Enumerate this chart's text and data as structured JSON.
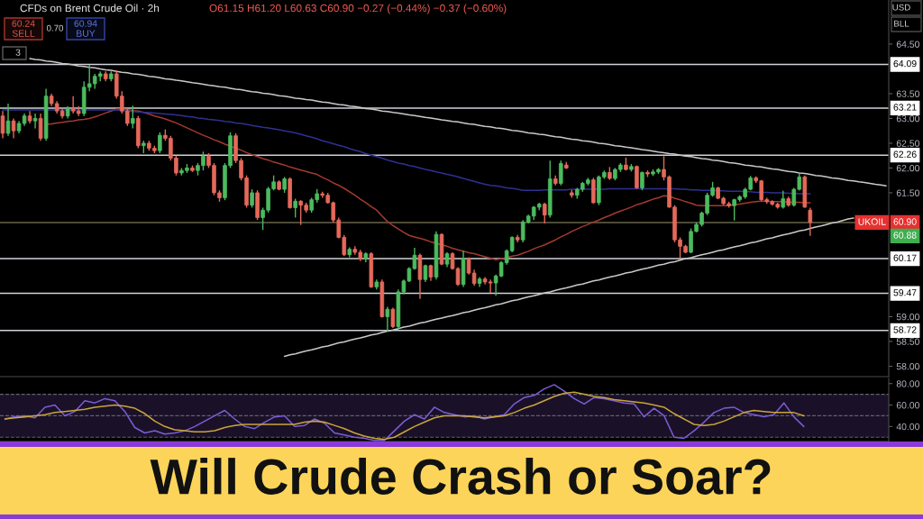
{
  "chart_data": [
    {
      "type": "candlestick",
      "title": "Will Crude Crash or Soar?",
      "subtitle": "CFDs on Brent Crude Oil · 2h",
      "categories": [
        null,
        null,
        null,
        null,
        null,
        null,
        null,
        null,
        null,
        null,
        null,
        null,
        null,
        null,
        null,
        null,
        null,
        null,
        null,
        null,
        null,
        null,
        null,
        null,
        null,
        null,
        null,
        null,
        null,
        null,
        null,
        null,
        null,
        null,
        null,
        null,
        null,
        null,
        null,
        null,
        null,
        null,
        null,
        null,
        null,
        null,
        null,
        null,
        null,
        null,
        null,
        null,
        null,
        null,
        null,
        null,
        null,
        null,
        null,
        null,
        null,
        null,
        null,
        null,
        null,
        null,
        null,
        null,
        null,
        null,
        null,
        null,
        null,
        null,
        null,
        null,
        null,
        null,
        null,
        null,
        null,
        null,
        null,
        null,
        null,
        null,
        null,
        null,
        null,
        null,
        null,
        null,
        null,
        null,
        null,
        null,
        null,
        null,
        null,
        null,
        null,
        null,
        null,
        null,
        null,
        null,
        null,
        null,
        null,
        null,
        null,
        null,
        null,
        null,
        null,
        null,
        null,
        null,
        null,
        null,
        null,
        null,
        null,
        null,
        null,
        null,
        null,
        null,
        null,
        null,
        null,
        null,
        null,
        null,
        null,
        null,
        null,
        null,
        null,
        null,
        null,
        null,
        null,
        null,
        null,
        null,
        null,
        null,
        null,
        null,
        null,
        null,
        null,
        null,
        null,
        null,
        null,
        null,
        null,
        null,
        null,
        null,
        null,
        null
      ],
      "ohlc": [
        [
          63.05,
          63.15,
          62.6,
          62.7
        ],
        [
          62.7,
          63.3,
          62.65,
          62.95
        ],
        [
          62.95,
          63.0,
          62.6,
          62.75
        ],
        [
          62.75,
          62.95,
          62.7,
          62.9
        ],
        [
          62.9,
          63.1,
          62.85,
          63.05
        ],
        [
          63.05,
          63.15,
          62.9,
          62.95
        ],
        [
          62.95,
          63.1,
          62.8,
          63.0
        ],
        [
          63.0,
          63.1,
          62.55,
          62.6
        ],
        [
          62.6,
          63.6,
          62.55,
          63.45
        ],
        [
          63.45,
          63.5,
          63.25,
          63.3
        ],
        [
          63.3,
          63.35,
          63.1,
          63.15
        ],
        [
          63.15,
          63.2,
          63.0,
          63.05
        ],
        [
          63.05,
          63.25,
          63.0,
          63.2
        ],
        [
          63.2,
          63.45,
          63.1,
          63.15
        ],
        [
          63.15,
          63.25,
          63.05,
          63.1
        ],
        [
          63.1,
          63.75,
          63.05,
          63.63
        ],
        [
          63.63,
          64.08,
          63.55,
          63.7
        ],
        [
          63.7,
          63.9,
          63.6,
          63.85
        ],
        [
          63.85,
          63.95,
          63.75,
          63.9
        ],
        [
          63.9,
          63.95,
          63.75,
          63.8
        ],
        [
          63.8,
          63.95,
          63.75,
          63.9
        ],
        [
          63.9,
          63.97,
          63.4,
          63.45
        ],
        [
          63.45,
          63.55,
          63.1,
          63.15
        ],
        [
          63.15,
          63.2,
          62.85,
          62.9
        ],
        [
          62.9,
          63.26,
          62.8,
          63.0
        ],
        [
          63.0,
          63.05,
          62.4,
          62.45
        ],
        [
          62.45,
          62.55,
          62.3,
          62.5
        ],
        [
          62.5,
          62.55,
          62.35,
          62.4
        ],
        [
          62.4,
          62.45,
          62.3,
          62.35
        ],
        [
          62.35,
          62.72,
          62.3,
          62.66
        ],
        [
          62.66,
          62.78,
          62.55,
          62.6
        ],
        [
          62.6,
          62.65,
          62.15,
          62.2
        ],
        [
          62.2,
          62.25,
          61.85,
          61.9
        ],
        [
          61.9,
          62.0,
          61.85,
          61.95
        ],
        [
          61.95,
          62.08,
          61.9,
          62.0
        ],
        [
          62.0,
          62.05,
          61.92,
          61.95
        ],
        [
          61.95,
          62.1,
          61.85,
          62.05
        ],
        [
          62.05,
          62.33,
          61.95,
          62.24
        ],
        [
          62.24,
          62.3,
          62.0,
          62.05
        ],
        [
          62.05,
          62.1,
          61.45,
          61.5
        ],
        [
          61.5,
          61.55,
          61.32,
          61.4
        ],
        [
          61.4,
          62.1,
          61.35,
          62.05
        ],
        [
          62.05,
          62.72,
          62.0,
          62.65
        ],
        [
          62.65,
          62.7,
          62.1,
          62.15
        ],
        [
          62.15,
          62.2,
          61.75,
          61.8
        ],
        [
          61.8,
          61.85,
          61.2,
          61.25
        ],
        [
          61.25,
          61.57,
          61.2,
          61.5
        ],
        [
          61.5,
          61.55,
          60.95,
          61.0
        ],
        [
          61.0,
          61.2,
          60.75,
          61.15
        ],
        [
          61.15,
          61.62,
          61.1,
          61.58
        ],
        [
          61.58,
          61.85,
          61.55,
          61.72
        ],
        [
          61.72,
          61.75,
          61.55,
          61.57
        ],
        [
          61.57,
          61.82,
          61.5,
          61.78
        ],
        [
          61.78,
          61.81,
          61.18,
          61.2
        ],
        [
          61.2,
          61.38,
          61.0,
          61.33
        ],
        [
          61.33,
          61.35,
          60.85,
          61.25
        ],
        [
          61.25,
          61.3,
          61.1,
          61.15
        ],
        [
          61.15,
          61.4,
          61.1,
          61.36
        ],
        [
          61.36,
          61.57,
          61.3,
          61.48
        ],
        [
          61.48,
          61.52,
          61.4,
          61.45
        ],
        [
          61.45,
          61.5,
          61.28,
          61.3
        ],
        [
          61.3,
          61.32,
          60.9,
          60.95
        ],
        [
          60.95,
          61.0,
          60.58,
          60.6
        ],
        [
          60.6,
          60.65,
          60.22,
          60.25
        ],
        [
          60.25,
          60.4,
          60.2,
          60.36
        ],
        [
          60.36,
          60.42,
          60.25,
          60.3
        ],
        [
          60.3,
          60.35,
          60.12,
          60.17
        ],
        [
          60.17,
          60.3,
          60.1,
          60.27
        ],
        [
          60.27,
          60.3,
          59.58,
          59.6
        ],
        [
          59.6,
          59.75,
          59.55,
          59.7
        ],
        [
          59.7,
          59.75,
          58.98,
          59.0
        ],
        [
          59.0,
          59.2,
          58.7,
          59.15
        ],
        [
          59.15,
          59.18,
          58.77,
          58.8
        ],
        [
          58.8,
          59.55,
          58.75,
          59.5
        ],
        [
          59.5,
          59.75,
          59.45,
          59.72
        ],
        [
          59.72,
          60.0,
          59.7,
          59.97
        ],
        [
          59.97,
          60.39,
          59.95,
          60.24
        ],
        [
          60.24,
          60.27,
          59.36,
          59.75
        ],
        [
          59.75,
          60.05,
          59.7,
          60.03
        ],
        [
          60.03,
          60.05,
          59.72,
          59.8
        ],
        [
          59.8,
          60.72,
          59.75,
          60.66
        ],
        [
          60.66,
          60.68,
          60.04,
          60.06
        ],
        [
          60.06,
          60.3,
          60.0,
          60.27
        ],
        [
          60.27,
          60.3,
          59.95,
          59.97
        ],
        [
          59.97,
          60.0,
          59.62,
          59.65
        ],
        [
          59.65,
          60.33,
          59.6,
          60.18
        ],
        [
          60.18,
          60.2,
          59.85,
          59.88
        ],
        [
          59.88,
          59.95,
          59.62,
          59.67
        ],
        [
          59.67,
          59.8,
          59.6,
          59.76
        ],
        [
          59.76,
          59.8,
          59.65,
          59.7
        ],
        [
          59.7,
          59.75,
          59.48,
          59.68
        ],
        [
          59.68,
          59.85,
          59.42,
          59.82
        ],
        [
          59.82,
          60.12,
          59.8,
          60.09
        ],
        [
          60.09,
          60.36,
          60.05,
          60.33
        ],
        [
          60.33,
          60.62,
          60.3,
          60.6
        ],
        [
          60.6,
          60.65,
          60.5,
          60.55
        ],
        [
          60.55,
          60.95,
          60.5,
          60.91
        ],
        [
          60.91,
          61.06,
          60.88,
          61.03
        ],
        [
          61.03,
          61.23,
          60.95,
          61.21
        ],
        [
          61.21,
          61.3,
          61.15,
          61.27
        ],
        [
          61.27,
          61.3,
          60.88,
          61.05
        ],
        [
          61.05,
          62.15,
          61.0,
          61.78
        ],
        [
          61.78,
          61.85,
          61.65,
          61.69
        ],
        [
          61.69,
          62.15,
          61.65,
          62.09
        ],
        [
          62.06,
          62.12,
          61.98,
          62.0
        ],
        [
          61.5,
          61.56,
          61.4,
          61.45
        ],
        [
          61.45,
          61.6,
          61.38,
          61.57
        ],
        [
          61.57,
          61.72,
          61.52,
          61.69
        ],
        [
          61.69,
          61.8,
          61.65,
          61.76
        ],
        [
          61.76,
          61.8,
          61.28,
          61.3
        ],
        [
          61.3,
          61.85,
          61.25,
          61.82
        ],
        [
          61.82,
          61.95,
          61.78,
          61.91
        ],
        [
          61.91,
          62.02,
          61.76,
          61.79
        ],
        [
          61.79,
          62.0,
          61.75,
          61.97
        ],
        [
          61.97,
          62.1,
          61.92,
          62.06
        ],
        [
          62.06,
          62.21,
          61.95,
          61.97
        ],
        [
          61.97,
          62.08,
          61.93,
          62.03
        ],
        [
          62.03,
          62.05,
          61.58,
          61.6
        ],
        [
          61.6,
          61.93,
          61.55,
          61.91
        ],
        [
          61.91,
          61.95,
          61.82,
          61.88
        ],
        [
          61.88,
          61.97,
          61.84,
          61.92
        ],
        [
          61.92,
          62.0,
          61.88,
          61.97
        ],
        [
          61.97,
          62.24,
          61.75,
          61.82
        ],
        [
          61.82,
          61.85,
          61.2,
          61.21
        ],
        [
          61.21,
          61.25,
          60.5,
          60.55
        ],
        [
          60.55,
          60.6,
          60.18,
          60.42
        ],
        [
          60.42,
          60.45,
          60.28,
          60.3
        ],
        [
          60.3,
          60.78,
          60.28,
          60.72
        ],
        [
          60.72,
          60.9,
          60.7,
          60.86
        ],
        [
          60.86,
          61.12,
          60.82,
          61.09
        ],
        [
          61.09,
          61.5,
          61.05,
          61.45
        ],
        [
          61.45,
          61.72,
          61.42,
          61.6
        ],
        [
          61.6,
          61.62,
          61.37,
          61.39
        ],
        [
          61.39,
          61.42,
          61.25,
          61.28
        ],
        [
          61.28,
          61.32,
          61.2,
          61.24
        ],
        [
          61.24,
          61.38,
          60.94,
          61.36
        ],
        [
          61.36,
          61.45,
          61.32,
          61.42
        ],
        [
          61.42,
          61.6,
          61.38,
          61.57
        ],
        [
          61.57,
          61.84,
          61.55,
          61.8
        ],
        [
          61.8,
          61.83,
          61.7,
          61.74
        ],
        [
          61.74,
          61.76,
          61.33,
          61.36
        ],
        [
          61.36,
          61.4,
          61.28,
          61.32
        ],
        [
          61.32,
          61.35,
          61.24,
          61.27
        ],
        [
          61.27,
          61.3,
          61.18,
          61.21
        ],
        [
          61.21,
          61.54,
          61.18,
          61.38
        ],
        [
          61.38,
          61.42,
          61.22,
          61.25
        ],
        [
          61.25,
          61.6,
          61.22,
          61.57
        ],
        [
          61.57,
          61.88,
          61.55,
          61.82
        ],
        [
          61.82,
          61.85,
          61.2,
          61.21
        ],
        [
          61.15,
          61.2,
          60.63,
          60.9
        ],
        null,
        null,
        null,
        null,
        null,
        null,
        null,
        null,
        null,
        null,
        null,
        null,
        null,
        null
      ],
      "series": [
        {
          "type": "line",
          "color": "#a33a2e",
          "values": [
            null,
            null,
            null,
            null,
            null,
            null,
            null,
            null,
            62.88,
            62.89,
            62.91,
            62.92,
            62.94,
            62.95,
            62.97,
            62.98,
            63.0,
            63.03,
            63.07,
            63.11,
            63.15,
            63.19,
            63.19,
            63.18,
            63.16,
            63.15,
            63.12,
            63.09,
            63.05,
            63.02,
            62.99,
            62.95,
            62.91,
            62.86,
            62.81,
            62.76,
            62.71,
            62.66,
            62.62,
            62.57,
            62.53,
            62.48,
            62.44,
            62.4,
            62.36,
            62.31,
            62.27,
            62.23,
            62.19,
            62.16,
            62.12,
            62.09,
            62.06,
            62.02,
            61.99,
            61.96,
            61.93,
            61.9,
            61.87,
            61.81,
            61.76,
            61.7,
            61.65,
            61.59,
            61.52,
            61.45,
            61.37,
            61.3,
            61.22,
            61.15,
            61.03,
            60.92,
            60.84,
            60.77,
            60.7,
            60.64,
            60.61,
            60.58,
            60.55,
            60.51,
            60.48,
            60.45,
            60.42,
            60.38,
            60.35,
            60.32,
            60.29,
            60.27,
            60.24,
            60.21,
            60.18,
            60.15,
            60.17,
            60.19,
            60.22,
            60.24,
            60.28,
            60.32,
            60.37,
            60.41,
            60.45,
            60.5,
            60.55,
            60.61,
            60.66,
            60.72,
            60.77,
            60.82,
            60.86,
            60.91,
            60.95,
            61.0,
            61.04,
            61.09,
            61.13,
            61.17,
            61.21,
            61.26,
            61.29,
            61.33,
            61.37,
            61.4,
            61.44,
            61.43,
            61.39,
            61.36,
            61.32,
            61.29,
            61.25,
            61.24,
            61.24,
            61.24,
            61.24,
            61.24,
            61.24,
            61.26,
            61.27,
            61.29,
            61.31,
            61.32,
            61.33,
            61.33,
            61.32,
            61.32,
            61.32,
            61.31,
            61.31,
            61.31,
            61.3,
            61.3,
            null,
            null,
            null,
            null,
            null,
            null,
            null,
            null,
            null,
            null,
            null,
            null,
            null,
            null
          ]
        },
        {
          "type": "line",
          "color": "#2d3192",
          "values": [
            63.17,
            63.17,
            63.17,
            63.17,
            63.17,
            63.17,
            63.17,
            63.17,
            63.17,
            63.17,
            63.17,
            63.17,
            63.17,
            63.17,
            63.17,
            63.17,
            63.17,
            63.17,
            63.17,
            63.17,
            63.17,
            63.17,
            63.16,
            63.15,
            63.14,
            63.13,
            63.12,
            63.12,
            63.11,
            63.1,
            63.09,
            63.08,
            63.07,
            63.06,
            63.04,
            63.03,
            63.01,
            63.0,
            62.98,
            62.97,
            62.96,
            62.94,
            62.93,
            62.91,
            62.9,
            62.88,
            62.86,
            62.84,
            62.82,
            62.81,
            62.79,
            62.77,
            62.75,
            62.73,
            62.71,
            62.68,
            62.65,
            62.62,
            62.59,
            62.55,
            62.52,
            62.49,
            62.46,
            62.43,
            62.39,
            62.36,
            62.33,
            62.29,
            62.26,
            62.23,
            62.2,
            62.16,
            62.13,
            62.1,
            62.08,
            62.05,
            62.03,
            62.0,
            61.97,
            61.95,
            61.92,
            61.9,
            61.87,
            61.85,
            61.82,
            61.79,
            61.76,
            61.73,
            61.7,
            61.67,
            61.65,
            61.64,
            61.62,
            61.6,
            61.59,
            61.57,
            61.55,
            61.55,
            61.55,
            61.55,
            61.56,
            61.56,
            61.56,
            61.56,
            61.56,
            61.57,
            61.57,
            61.57,
            61.57,
            61.57,
            61.57,
            61.57,
            61.58,
            61.58,
            61.58,
            61.58,
            61.58,
            61.58,
            61.58,
            61.58,
            61.58,
            61.58,
            61.58,
            61.58,
            61.58,
            61.57,
            61.57,
            61.56,
            61.56,
            61.55,
            61.55,
            61.55,
            61.54,
            61.54,
            61.53,
            61.53,
            61.53,
            61.52,
            61.52,
            61.51,
            61.51,
            61.51,
            61.5,
            61.5,
            61.5,
            61.49,
            61.49,
            61.48,
            61.48,
            61.48,
            null,
            null,
            null,
            null,
            null,
            null,
            null,
            null,
            null,
            null,
            null,
            null,
            null,
            null
          ]
        },
        {
          "type": "line",
          "color": "#c9c9c9",
          "values": [
            null,
            null,
            null,
            null,
            null,
            64.21,
            64.19,
            64.18,
            64.16,
            64.15,
            64.13,
            64.11,
            64.1,
            64.08,
            64.06,
            64.05,
            64.03,
            64.02,
            64.0,
            63.98,
            63.97,
            63.95,
            63.93,
            63.92,
            63.9,
            63.89,
            63.87,
            63.85,
            63.84,
            63.82,
            63.8,
            63.79,
            63.77,
            63.76,
            63.74,
            63.72,
            63.71,
            63.69,
            63.67,
            63.66,
            63.64,
            63.63,
            63.61,
            63.59,
            63.58,
            63.56,
            63.54,
            63.53,
            63.51,
            63.5,
            63.48,
            63.46,
            63.45,
            63.43,
            63.41,
            63.4,
            63.38,
            63.37,
            63.35,
            63.33,
            63.32,
            63.3,
            63.28,
            63.27,
            63.25,
            63.24,
            63.22,
            63.2,
            63.19,
            63.17,
            63.15,
            63.14,
            63.12,
            63.11,
            63.09,
            63.07,
            63.06,
            63.04,
            63.02,
            63.01,
            62.99,
            62.97,
            62.96,
            62.94,
            62.93,
            62.91,
            62.89,
            62.88,
            62.86,
            62.84,
            62.83,
            62.81,
            62.8,
            62.78,
            62.76,
            62.75,
            62.73,
            62.71,
            62.7,
            62.68,
            62.67,
            62.65,
            62.63,
            62.62,
            62.6,
            62.58,
            62.57,
            62.55,
            62.54,
            62.52,
            62.5,
            62.49,
            62.47,
            62.45,
            62.44,
            62.42,
            62.41,
            62.39,
            62.37,
            62.36,
            62.34,
            62.32,
            62.31,
            62.29,
            62.28,
            62.26,
            62.24,
            62.23,
            62.21,
            62.19,
            62.18,
            62.16,
            62.15,
            62.13,
            62.11,
            62.1,
            62.08,
            62.06,
            62.05,
            62.03,
            62.02,
            62.0,
            61.98,
            61.97,
            61.95,
            61.93,
            61.92,
            61.9,
            61.89,
            61.87,
            61.85,
            61.84,
            61.82,
            61.8,
            61.79,
            61.77,
            61.75,
            61.74,
            61.72,
            61.71,
            61.69,
            61.67,
            61.66,
            61.64
          ]
        },
        {
          "type": "line",
          "color": "#c9c9c9",
          "values": [
            null,
            null,
            null,
            null,
            null,
            null,
            null,
            null,
            null,
            null,
            null,
            null,
            null,
            null,
            null,
            null,
            null,
            null,
            null,
            null,
            null,
            null,
            null,
            null,
            null,
            null,
            null,
            null,
            null,
            null,
            null,
            null,
            null,
            null,
            null,
            null,
            null,
            null,
            null,
            null,
            null,
            null,
            null,
            null,
            null,
            null,
            null,
            null,
            null,
            null,
            null,
            null,
            58.2,
            58.23,
            58.25,
            58.28,
            58.31,
            58.33,
            58.36,
            58.39,
            58.41,
            58.44,
            58.47,
            58.49,
            58.52,
            58.55,
            58.57,
            58.6,
            58.63,
            58.65,
            58.68,
            58.71,
            58.73,
            58.76,
            58.79,
            58.81,
            58.84,
            58.87,
            58.89,
            58.92,
            58.95,
            58.97,
            59.0,
            59.02,
            59.05,
            59.08,
            59.1,
            59.13,
            59.16,
            59.18,
            59.21,
            59.24,
            59.26,
            59.29,
            59.32,
            59.34,
            59.37,
            59.4,
            59.42,
            59.45,
            59.48,
            59.5,
            59.53,
            59.56,
            59.58,
            59.61,
            59.64,
            59.66,
            59.69,
            59.72,
            59.74,
            59.77,
            59.8,
            59.82,
            59.85,
            59.88,
            59.9,
            59.93,
            59.96,
            59.98,
            60.01,
            60.04,
            60.06,
            60.09,
            60.11,
            60.14,
            60.17,
            60.19,
            60.22,
            60.25,
            60.27,
            60.3,
            60.33,
            60.35,
            60.38,
            60.41,
            60.43,
            60.46,
            60.49,
            60.51,
            60.54,
            60.57,
            60.59,
            60.62,
            60.65,
            60.67,
            60.7,
            60.73,
            60.75,
            60.78,
            60.81,
            60.83,
            60.86,
            60.89,
            60.91,
            60.94,
            60.97,
            60.99,
            null,
            null,
            null,
            null,
            null,
            null
          ]
        }
      ],
      "ylim": [
        57.79,
        65.39
      ],
      "yticks": [
        {
          "value": 64.5,
          "label": "64.50"
        },
        {
          "value": 63.5,
          "label": "63.50"
        },
        {
          "value": 63,
          "label": "63.00"
        },
        {
          "value": 62.5,
          "label": "62.50"
        },
        {
          "value": 62,
          "label": "62.00"
        },
        {
          "value": 61.5,
          "label": "61.50"
        },
        {
          "value": 59,
          "label": "59.00"
        },
        {
          "value": 58.5,
          "label": "58.50"
        },
        {
          "value": 58,
          "label": "58.00"
        }
      ],
      "ref_lines": [
        {
          "axis": "y",
          "value": 64.09,
          "label": "64.09"
        },
        {
          "axis": "y",
          "value": 63.21,
          "label": "63.21"
        },
        {
          "axis": "y",
          "value": 62.26,
          "label": "62.26"
        },
        {
          "axis": "y",
          "value": 60.9,
          "label": "60.90",
          "color": "#67634c"
        },
        {
          "axis": "y",
          "value": 60.17,
          "label": "60.17"
        },
        {
          "axis": "y",
          "value": 59.47,
          "label": "59.47"
        },
        {
          "axis": "y",
          "value": 58.72,
          "label": "58.72"
        }
      ],
      "annotations": [
        "O61.15 H61.20 L60.63 C60.90 −0.27 (−0.44%) −0.37 (−0.60%)",
        "60.24",
        "SELL",
        "0.70",
        "60.94",
        "BUY",
        "3",
        "USD",
        "BLL",
        {
          "text": "UKOIL",
          "y": 60.9
        },
        {
          "text": "60.88",
          "y": 60.88
        }
      ],
      "tick_labels": "y"
    },
    {
      "type": "line",
      "categories": [
        null,
        null,
        null,
        null,
        null,
        null,
        null,
        null,
        null,
        null,
        null,
        null,
        null,
        null,
        null,
        null,
        null,
        null,
        null,
        null,
        null,
        null,
        null,
        null,
        null,
        null,
        null,
        null,
        null,
        null,
        null,
        null,
        null,
        null,
        null,
        null,
        null,
        null,
        null,
        null,
        null,
        null,
        null,
        null,
        null,
        null,
        null,
        null,
        null,
        null,
        null,
        null,
        null,
        null,
        null,
        null,
        null,
        null,
        null,
        null,
        null,
        null,
        null,
        null,
        null,
        null,
        null,
        null,
        null,
        null,
        null,
        null,
        null,
        null,
        null,
        null,
        null,
        null,
        null,
        null,
        null,
        null,
        null,
        null,
        null,
        null,
        null,
        null,
        null
      ],
      "series": [
        {
          "color": "#7b5cd6",
          "values": [
            47,
            49,
            50,
            48,
            58,
            60,
            50,
            54,
            64,
            62,
            66,
            64,
            54,
            39,
            34,
            36,
            33,
            34,
            36,
            40,
            45,
            50,
            55,
            47,
            40,
            38,
            44,
            49,
            50,
            40,
            41,
            47,
            43,
            34,
            32,
            30,
            29,
            27,
            27,
            36,
            45,
            51,
            47,
            58,
            53,
            51,
            49,
            50,
            47,
            49,
            51,
            61,
            67,
            69,
            75,
            79,
            73,
            66,
            61,
            67,
            66,
            64,
            62,
            61,
            49,
            57,
            50,
            30,
            29,
            36,
            44,
            53,
            57,
            58,
            53,
            51,
            49,
            51,
            62,
            49,
            40,
            null,
            null,
            null,
            null,
            null,
            null,
            null,
            null
          ]
        },
        {
          "color": "#c9a43c",
          "values": [
            47,
            48,
            49,
            50,
            51,
            53,
            54,
            55,
            56,
            58,
            59,
            60,
            59,
            57,
            52,
            45,
            40,
            37,
            36,
            35,
            35,
            36,
            39,
            41,
            42,
            42,
            42,
            42,
            42,
            42,
            44,
            45,
            44,
            41,
            38,
            34,
            31,
            29,
            28,
            30,
            35,
            40,
            44,
            48,
            50,
            50,
            50,
            49,
            48,
            49,
            50,
            53,
            57,
            60,
            64,
            68,
            71,
            72,
            70,
            68,
            67,
            65,
            64,
            63,
            62,
            60,
            58,
            52,
            47,
            42,
            41,
            42,
            45,
            49,
            53,
            55,
            54,
            53,
            53,
            53,
            50,
            null,
            null,
            null,
            null,
            null,
            null,
            null,
            null
          ]
        }
      ],
      "ylim": [
        26,
        84.8
      ],
      "yticks": [
        {
          "value": 80,
          "label": "80.00"
        },
        {
          "value": 60,
          "label": "60.00"
        },
        {
          "value": 40,
          "label": "40.00"
        }
      ],
      "ref_lines": [
        {
          "axis": "y",
          "value": 70,
          "line_style": "dashed"
        },
        {
          "axis": "y",
          "value": 50,
          "line_style": "dashed"
        },
        {
          "axis": "y",
          "value": 30,
          "line_style": "dashed"
        }
      ],
      "bands": [
        {
          "axis": "y",
          "from": 30,
          "to": 70,
          "color": "#1a1128"
        }
      ],
      "tick_labels": "y"
    }
  ]
}
